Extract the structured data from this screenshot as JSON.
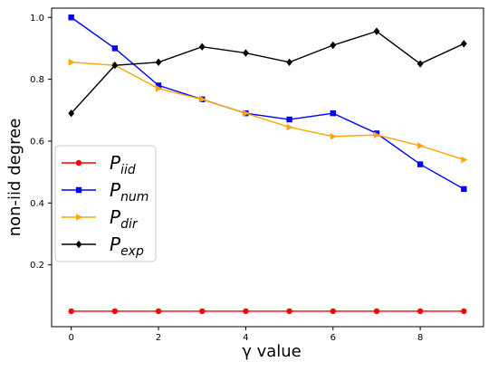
{
  "chart_data": {
    "type": "line",
    "xlabel": "γ value",
    "ylabel": "non-iid degree",
    "xlim": [
      -0.45,
      9.45
    ],
    "ylim": [
      0.0,
      1.03
    ],
    "xticks": [
      0,
      2,
      4,
      6,
      8
    ],
    "yticks": [
      0.2,
      0.4,
      0.6,
      0.8,
      1.0
    ],
    "xtick_labels": [
      "0",
      "2",
      "4",
      "6",
      "8"
    ],
    "ytick_labels": [
      "0.2",
      "0.4",
      "0.6",
      "0.8",
      "1.0"
    ],
    "grid": false,
    "legend_position": "center-left",
    "x": [
      0,
      1,
      2,
      3,
      4,
      5,
      6,
      7,
      8,
      9
    ],
    "series": [
      {
        "name": "P",
        "sub": "iid",
        "color": "#ff0000",
        "marker": "circle",
        "values": [
          0.05,
          0.05,
          0.05,
          0.05,
          0.05,
          0.05,
          0.05,
          0.05,
          0.05,
          0.05
        ]
      },
      {
        "name": "P",
        "sub": "num",
        "color": "#0000ff",
        "marker": "square",
        "values": [
          1.0,
          0.9,
          0.78,
          0.735,
          0.69,
          0.67,
          0.69,
          0.625,
          0.525,
          0.445
        ]
      },
      {
        "name": "P",
        "sub": "dir",
        "color": "#ffa500",
        "marker": "triangle-right",
        "values": [
          0.855,
          0.845,
          0.77,
          0.735,
          0.69,
          0.645,
          0.615,
          0.62,
          0.585,
          0.54
        ]
      },
      {
        "name": "P",
        "sub": "exp",
        "color": "#000000",
        "marker": "diamond",
        "values": [
          0.69,
          0.845,
          0.855,
          0.905,
          0.885,
          0.855,
          0.91,
          0.955,
          0.85,
          0.915
        ]
      }
    ]
  }
}
